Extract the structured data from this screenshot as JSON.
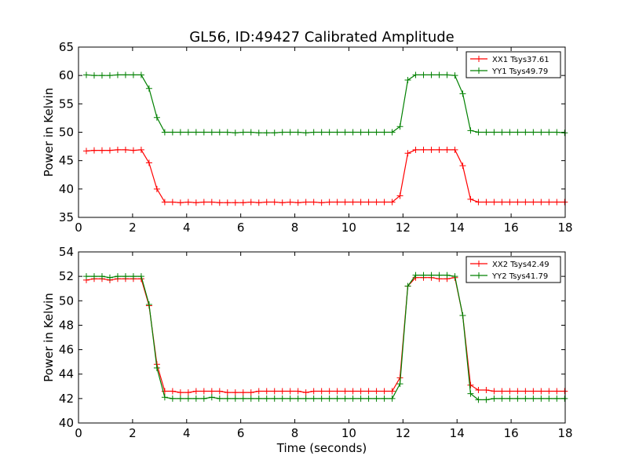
{
  "figure": {
    "title": "GL56, ID:49427 Calibrated Amplitude",
    "xlabel": "Time (seconds)"
  },
  "chart_data": [
    {
      "type": "line",
      "title": "GL56, ID:49427 Calibrated Amplitude",
      "xlabel": "",
      "ylabel": "Power in Kelvin",
      "xlim": [
        0,
        18
      ],
      "ylim": [
        35,
        65
      ],
      "xticks": [
        0,
        2,
        4,
        6,
        8,
        10,
        12,
        14,
        16,
        18
      ],
      "yticks": [
        35,
        40,
        45,
        50,
        55,
        60,
        65
      ],
      "grid": false,
      "legend": "top-right",
      "x": [
        0.29,
        0.58,
        0.87,
        1.16,
        1.45,
        1.74,
        2.03,
        2.32,
        2.61,
        2.9,
        3.19,
        3.48,
        3.77,
        4.06,
        4.35,
        4.64,
        4.93,
        5.22,
        5.51,
        5.8,
        6.09,
        6.38,
        6.67,
        6.96,
        7.25,
        7.54,
        7.83,
        8.12,
        8.41,
        8.7,
        8.99,
        9.28,
        9.57,
        9.86,
        10.15,
        10.44,
        10.73,
        11.02,
        11.31,
        11.6,
        11.89,
        12.18,
        12.47,
        12.76,
        13.05,
        13.34,
        13.63,
        13.92,
        14.21,
        14.5,
        14.79,
        15.08,
        15.37,
        15.66,
        15.95,
        16.24,
        16.53,
        16.82,
        17.11,
        17.4,
        17.69,
        17.98
      ],
      "series": [
        {
          "name": "XX1 Tsys37.61",
          "color": "#ff0000",
          "values": [
            46.7,
            46.8,
            46.8,
            46.8,
            46.9,
            46.9,
            46.8,
            46.9,
            44.6,
            40.0,
            37.7,
            37.7,
            37.6,
            37.7,
            37.6,
            37.7,
            37.7,
            37.6,
            37.6,
            37.6,
            37.6,
            37.7,
            37.6,
            37.7,
            37.7,
            37.6,
            37.7,
            37.6,
            37.7,
            37.7,
            37.6,
            37.7,
            37.7,
            37.7,
            37.7,
            37.7,
            37.7,
            37.7,
            37.7,
            37.7,
            38.8,
            46.3,
            46.9,
            46.9,
            46.9,
            46.9,
            46.9,
            46.9,
            44.1,
            38.2,
            37.7,
            37.7,
            37.7,
            37.7,
            37.7,
            37.7,
            37.7,
            37.7,
            37.7,
            37.7,
            37.7,
            37.7
          ]
        },
        {
          "name": "YY1 Tsys49.79",
          "color": "#008000",
          "values": [
            60.1,
            60.0,
            60.0,
            60.0,
            60.1,
            60.1,
            60.1,
            60.1,
            57.7,
            52.6,
            50.0,
            50.0,
            50.0,
            50.0,
            50.0,
            50.0,
            50.0,
            50.0,
            50.0,
            49.9,
            50.0,
            50.0,
            49.9,
            49.9,
            49.9,
            50.0,
            50.0,
            50.0,
            49.9,
            50.0,
            50.0,
            50.0,
            50.0,
            50.0,
            50.0,
            50.0,
            50.0,
            50.0,
            50.0,
            50.0,
            51.0,
            59.2,
            60.1,
            60.1,
            60.1,
            60.1,
            60.1,
            60.0,
            56.8,
            50.3,
            50.0,
            50.0,
            50.0,
            50.0,
            50.0,
            50.0,
            50.0,
            50.0,
            50.0,
            50.0,
            50.0,
            49.9
          ]
        }
      ]
    },
    {
      "type": "line",
      "title": "",
      "xlabel": "Time (seconds)",
      "ylabel": "Power in Kelvin",
      "xlim": [
        0,
        18
      ],
      "ylim": [
        40,
        54
      ],
      "xticks": [
        0,
        2,
        4,
        6,
        8,
        10,
        12,
        14,
        16,
        18
      ],
      "yticks": [
        40,
        42,
        44,
        46,
        48,
        50,
        52,
        54
      ],
      "grid": false,
      "legend": "top-right",
      "x": [
        0.29,
        0.58,
        0.87,
        1.16,
        1.45,
        1.74,
        2.03,
        2.32,
        2.61,
        2.9,
        3.19,
        3.48,
        3.77,
        4.06,
        4.35,
        4.64,
        4.93,
        5.22,
        5.51,
        5.8,
        6.09,
        6.38,
        6.67,
        6.96,
        7.25,
        7.54,
        7.83,
        8.12,
        8.41,
        8.7,
        8.99,
        9.28,
        9.57,
        9.86,
        10.15,
        10.44,
        10.73,
        11.02,
        11.31,
        11.6,
        11.89,
        12.18,
        12.47,
        12.76,
        13.05,
        13.34,
        13.63,
        13.92,
        14.21,
        14.5,
        14.79,
        15.08,
        15.37,
        15.66,
        15.95,
        16.24,
        16.53,
        16.82,
        17.11,
        17.4,
        17.69,
        17.98
      ],
      "series": [
        {
          "name": "XX2 Tsys42.49",
          "color": "#ff0000",
          "values": [
            51.7,
            51.8,
            51.8,
            51.7,
            51.8,
            51.8,
            51.8,
            51.8,
            49.6,
            44.8,
            42.6,
            42.6,
            42.5,
            42.5,
            42.6,
            42.6,
            42.6,
            42.6,
            42.5,
            42.5,
            42.5,
            42.5,
            42.6,
            42.6,
            42.6,
            42.6,
            42.6,
            42.6,
            42.5,
            42.6,
            42.6,
            42.6,
            42.6,
            42.6,
            42.6,
            42.6,
            42.6,
            42.6,
            42.6,
            42.6,
            43.7,
            51.2,
            51.9,
            51.9,
            51.9,
            51.8,
            51.8,
            51.9,
            48.8,
            43.1,
            42.7,
            42.7,
            42.6,
            42.6,
            42.6,
            42.6,
            42.6,
            42.6,
            42.6,
            42.6,
            42.6,
            42.6
          ]
        },
        {
          "name": "YY2 Tsys41.79",
          "color": "#008000",
          "values": [
            52.0,
            52.0,
            52.0,
            51.9,
            52.0,
            52.0,
            52.0,
            52.0,
            49.7,
            44.5,
            42.1,
            42.0,
            42.0,
            42.0,
            42.0,
            42.0,
            42.1,
            42.0,
            42.0,
            42.0,
            42.0,
            42.0,
            42.0,
            42.0,
            42.0,
            42.0,
            42.0,
            42.0,
            42.0,
            42.0,
            42.0,
            42.0,
            42.0,
            42.0,
            42.0,
            42.0,
            42.0,
            42.0,
            42.0,
            42.0,
            43.2,
            51.2,
            52.1,
            52.1,
            52.1,
            52.1,
            52.1,
            52.0,
            48.8,
            42.4,
            41.9,
            41.9,
            42.0,
            42.0,
            42.0,
            42.0,
            42.0,
            42.0,
            42.0,
            42.0,
            42.0,
            42.0
          ]
        }
      ]
    }
  ]
}
